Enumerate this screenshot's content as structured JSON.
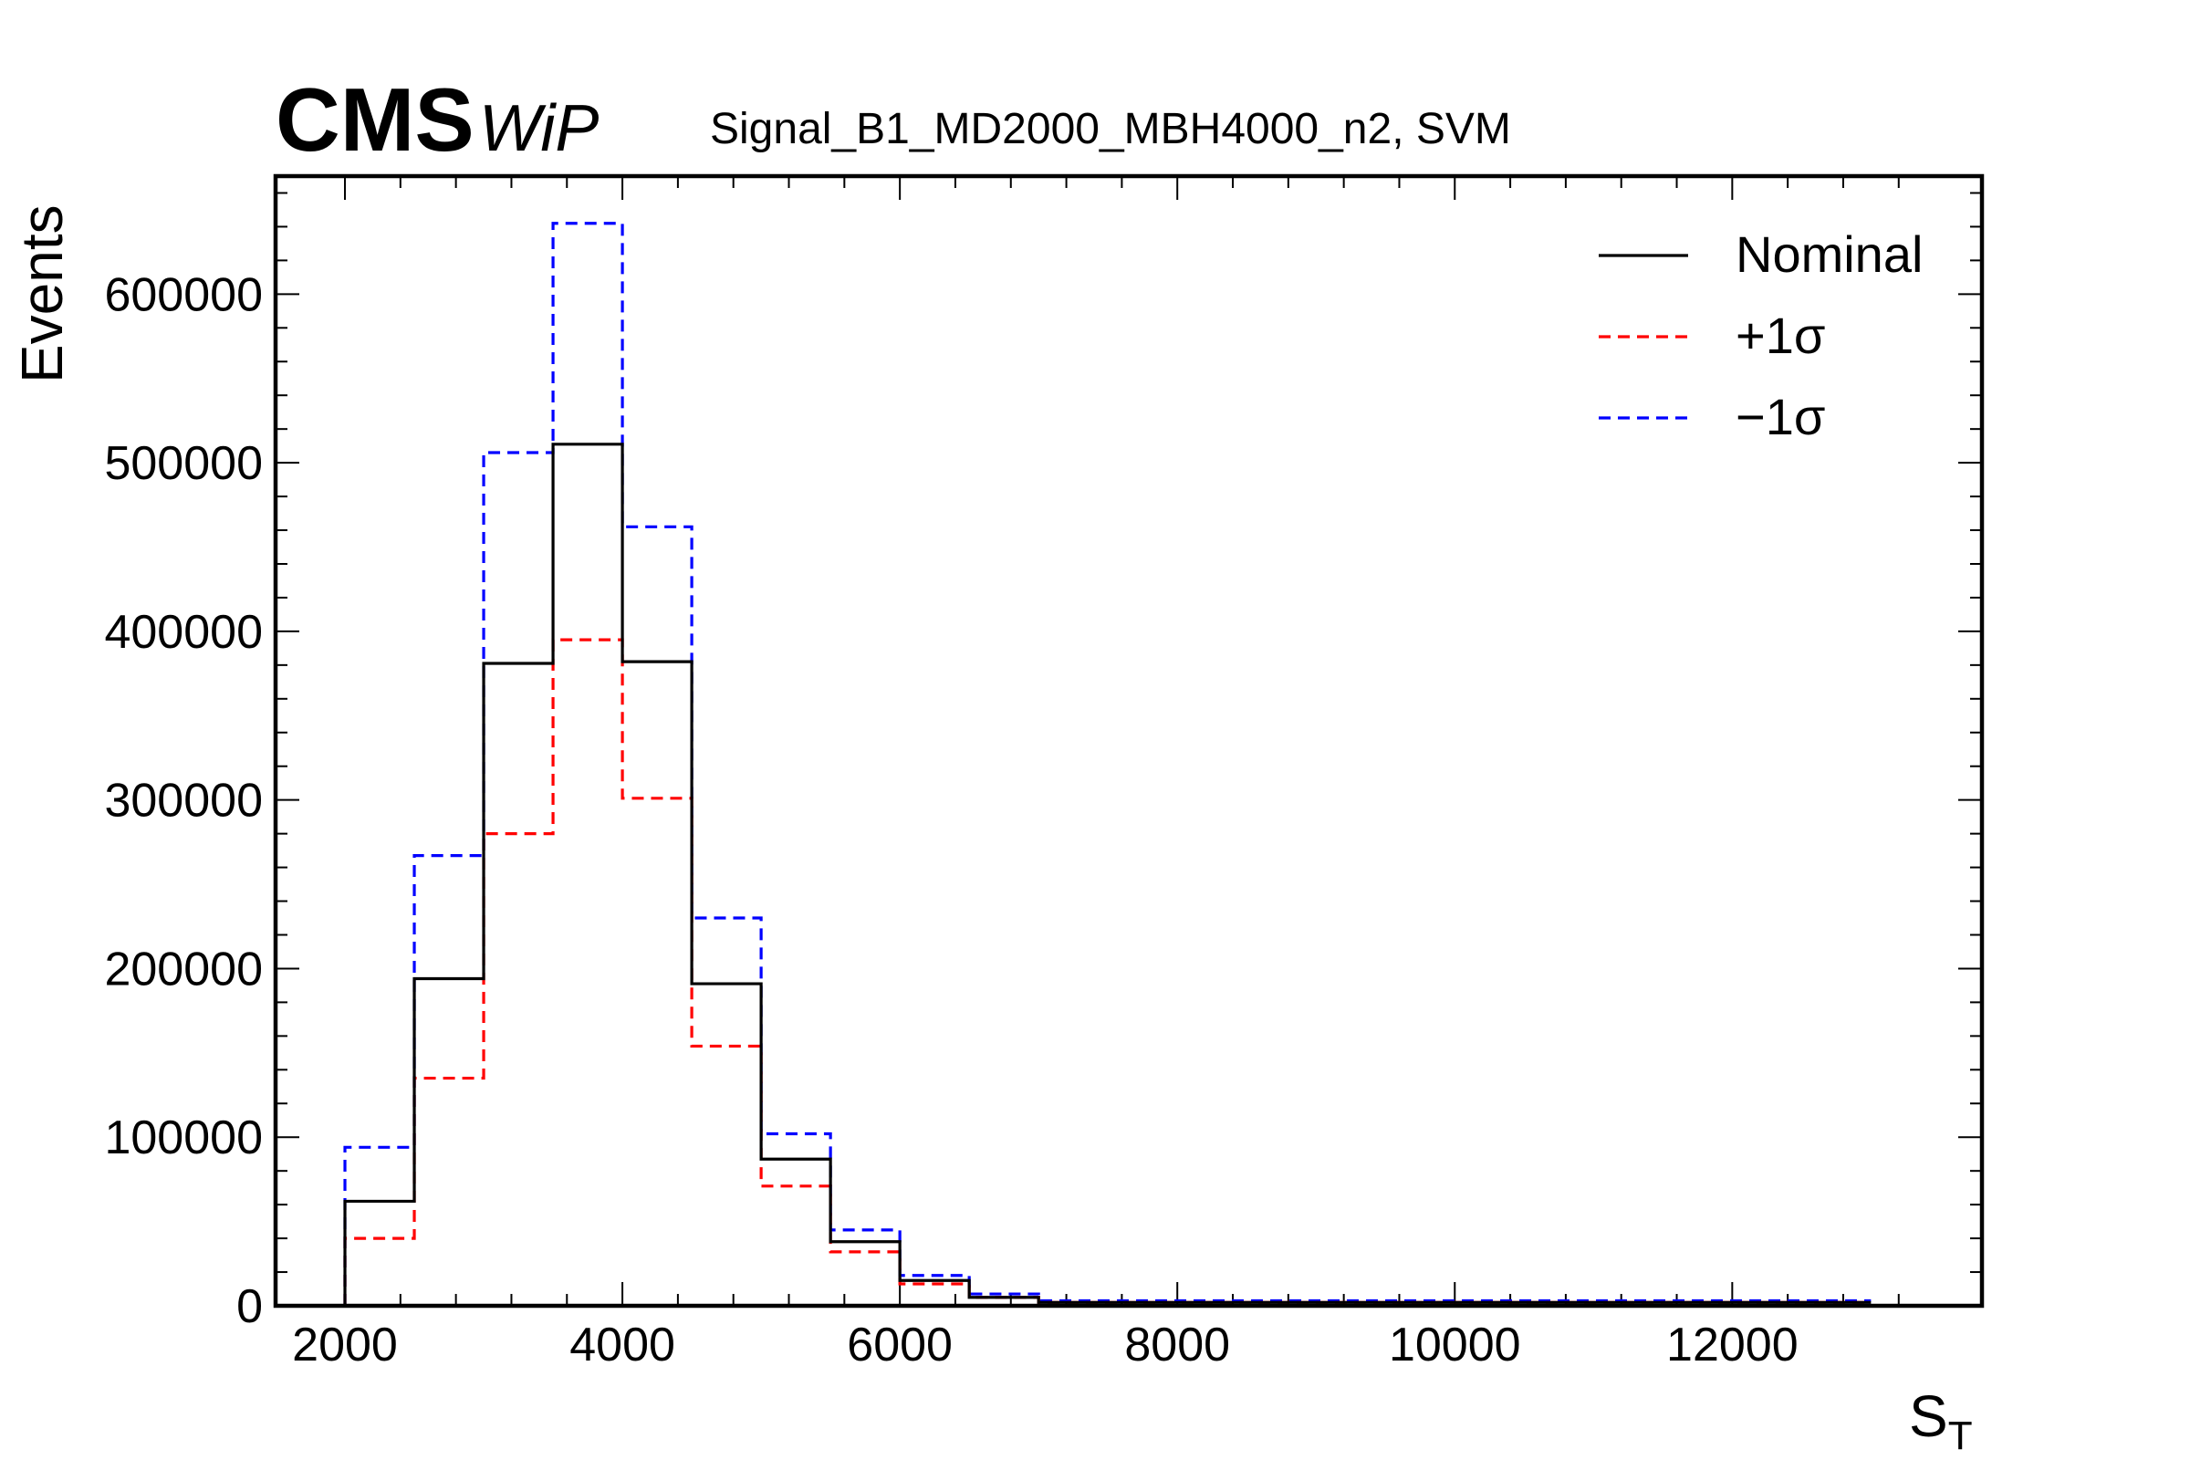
{
  "header": {
    "experiment": "CMS",
    "status": "WiP",
    "subtitle": "Signal_B1_MD2000_MBH4000_n2, SVM"
  },
  "chart_data": {
    "type": "step-histogram",
    "xlabel_main": "S",
    "xlabel_sub": "T",
    "ylabel": "Events",
    "xlim": [
      1500,
      13800
    ],
    "ylim": [
      0,
      670000
    ],
    "x_ticks": [
      2000,
      4000,
      6000,
      8000,
      10000,
      12000
    ],
    "x_tick_labels": [
      "2000",
      "4000",
      "6000",
      "8000",
      "10000",
      "12000"
    ],
    "y_ticks": [
      0,
      100000,
      200000,
      300000,
      400000,
      500000,
      600000
    ],
    "y_tick_labels": [
      "0",
      "100000",
      "200000",
      "300000",
      "400000",
      "500000",
      "600000"
    ],
    "grid": false,
    "legend_position": "top-right",
    "bin_edges": [
      2000,
      2500,
      3000,
      3500,
      4000,
      4500,
      5000,
      5500,
      6000,
      6500,
      7000,
      13000
    ],
    "series": [
      {
        "name": "Nominal",
        "color": "#000000",
        "style": "solid",
        "values": [
          62000,
          194000,
          381000,
          511000,
          382000,
          191000,
          87000,
          38000,
          15000,
          5000,
          2000
        ]
      },
      {
        "name": "+1σ",
        "color": "#ff0000",
        "style": "dashed",
        "values": [
          40000,
          135000,
          280000,
          395000,
          301000,
          154000,
          71000,
          32000,
          13000,
          5000,
          2000
        ]
      },
      {
        "name": "−1σ",
        "color": "#0000ff",
        "style": "dashed",
        "values": [
          94000,
          267000,
          506000,
          642000,
          462000,
          230000,
          102000,
          45000,
          18000,
          7000,
          3000
        ]
      }
    ]
  }
}
